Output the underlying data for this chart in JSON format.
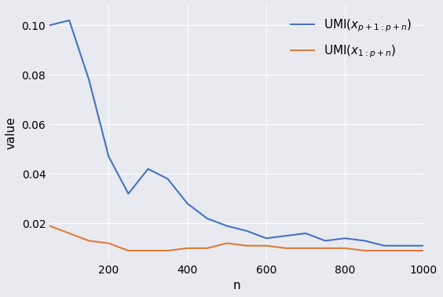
{
  "blue_x": [
    50,
    100,
    150,
    200,
    250,
    300,
    350,
    400,
    450,
    500,
    550,
    600,
    650,
    700,
    750,
    800,
    850,
    900,
    950,
    1000
  ],
  "blue_y": [
    0.1,
    0.102,
    0.078,
    0.047,
    0.032,
    0.042,
    0.038,
    0.028,
    0.022,
    0.019,
    0.017,
    0.014,
    0.015,
    0.016,
    0.013,
    0.014,
    0.013,
    0.011,
    0.011,
    0.011
  ],
  "orange_x": [
    50,
    100,
    150,
    200,
    250,
    300,
    350,
    400,
    450,
    500,
    550,
    600,
    650,
    700,
    750,
    800,
    850,
    900,
    950,
    1000
  ],
  "orange_y": [
    0.019,
    0.016,
    0.013,
    0.012,
    0.009,
    0.009,
    0.009,
    0.01,
    0.01,
    0.012,
    0.011,
    0.011,
    0.01,
    0.01,
    0.01,
    0.01,
    0.009,
    0.009,
    0.009,
    0.009
  ],
  "blue_color": "#4472c4",
  "orange_color": "#e07b39",
  "blue_label": "UMI$(x_{p+1:p+n})$",
  "orange_label": "UMI$(x_{1:p+n})$",
  "xlabel": "n",
  "ylabel": "value",
  "xlim": [
    50,
    1000
  ],
  "ylim": [
    0.005,
    0.108
  ],
  "yticks": [
    0.02,
    0.04,
    0.06,
    0.08,
    0.1
  ],
  "xticks": [
    200,
    400,
    600,
    800,
    1000
  ],
  "background_color": "#e8eaf0",
  "figure_background": "#e8eaf0",
  "grid_color": "#ffffff",
  "legend_fontsize": 11,
  "axis_fontsize": 11,
  "tick_fontsize": 10
}
